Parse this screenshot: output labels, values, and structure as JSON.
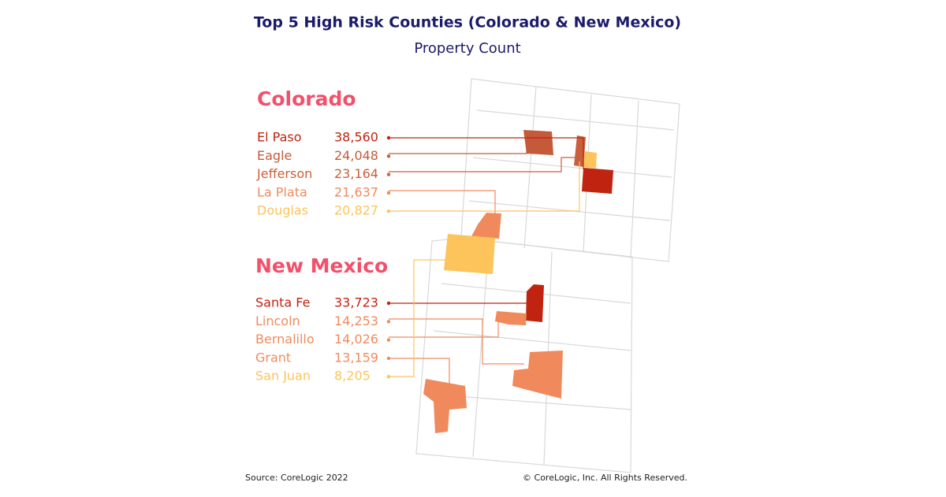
{
  "header": {
    "title": "Top 5 High Risk Counties (Colorado & New Mexico)",
    "subtitle": "Property Count"
  },
  "groups": [
    {
      "state": "Colorado",
      "counties": [
        {
          "name": "El Paso",
          "count": "38,560"
        },
        {
          "name": "Eagle",
          "count": "24,048"
        },
        {
          "name": "Jefferson",
          "count": "23,164"
        },
        {
          "name": "La Plata",
          "count": "21,637"
        },
        {
          "name": "Douglas",
          "count": "20,827"
        }
      ]
    },
    {
      "state": "New Mexico",
      "counties": [
        {
          "name": "Santa Fe",
          "count": "33,723"
        },
        {
          "name": "Lincoln",
          "count": "14,253"
        },
        {
          "name": "Bernalillo",
          "count": "14,026"
        },
        {
          "name": "Grant",
          "count": "13,159"
        },
        {
          "name": "San Juan",
          "count": "8,205"
        }
      ]
    }
  ],
  "footer": {
    "source": "Source: CoreLogic 2022",
    "copyright": "© CoreLogic, Inc. All Rights Reserved."
  }
}
